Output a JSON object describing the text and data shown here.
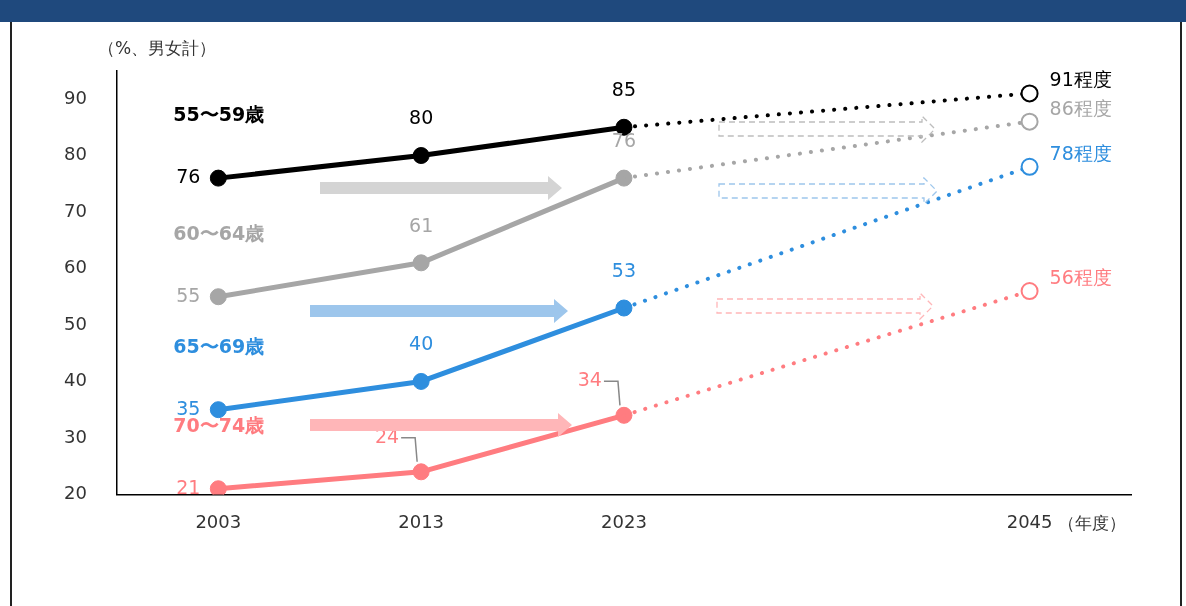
{
  "chart_data": {
    "type": "line",
    "ylabel": "（%、男女計）",
    "xlabel": "（年度）",
    "categories": [
      "2003",
      "2013",
      "2023",
      null,
      "2045"
    ],
    "ylim": [
      20,
      95
    ],
    "yticks": [
      20,
      30,
      40,
      50,
      60,
      70,
      80,
      90
    ],
    "grid": false,
    "legend": false,
    "marker": "circle",
    "series": [
      {
        "color": "#000000",
        "line_style": "dotted",
        "values": [
          null,
          null,
          85,
          null,
          91
        ],
        "value_labels": [
          null,
          null,
          null,
          null,
          "91程度"
        ]
      },
      {
        "color": "#a6a6a6",
        "line_style": "dotted",
        "values": [
          null,
          null,
          76,
          null,
          86
        ],
        "value_labels": [
          null,
          null,
          null,
          null,
          "86程度"
        ]
      },
      {
        "color": "#2e8ede",
        "line_style": "dotted",
        "values": [
          null,
          null,
          53,
          null,
          78
        ],
        "value_labels": [
          null,
          null,
          null,
          null,
          "78程度"
        ]
      },
      {
        "color": "#ff7c80",
        "line_style": "dotted",
        "values": [
          null,
          null,
          34,
          null,
          56
        ],
        "value_labels": [
          null,
          null,
          null,
          null,
          "56程度"
        ]
      },
      {
        "name": "55〜59歳",
        "color": "#000000",
        "line_style": "solid",
        "values": [
          76,
          80,
          85,
          null,
          null
        ],
        "value_labels": [
          "76",
          "80",
          "85",
          null,
          null
        ]
      },
      {
        "name": "60〜64歳",
        "color": "#a6a6a6",
        "line_style": "solid",
        "values": [
          55,
          61,
          76,
          null,
          null
        ],
        "value_labels": [
          "55",
          "61",
          "76",
          null,
          null
        ]
      },
      {
        "name": "65〜69歳",
        "color": "#2e8ede",
        "line_style": "solid",
        "values": [
          35,
          40,
          53,
          null,
          null
        ],
        "value_labels": [
          "35",
          "40",
          "53",
          null,
          null
        ]
      },
      {
        "name": "70〜74歳",
        "color": "#ff7c80",
        "line_style": "solid",
        "values": [
          21,
          24,
          34,
          null,
          null
        ],
        "value_labels": [
          "21",
          "24",
          "34",
          null,
          null
        ]
      }
    ]
  }
}
